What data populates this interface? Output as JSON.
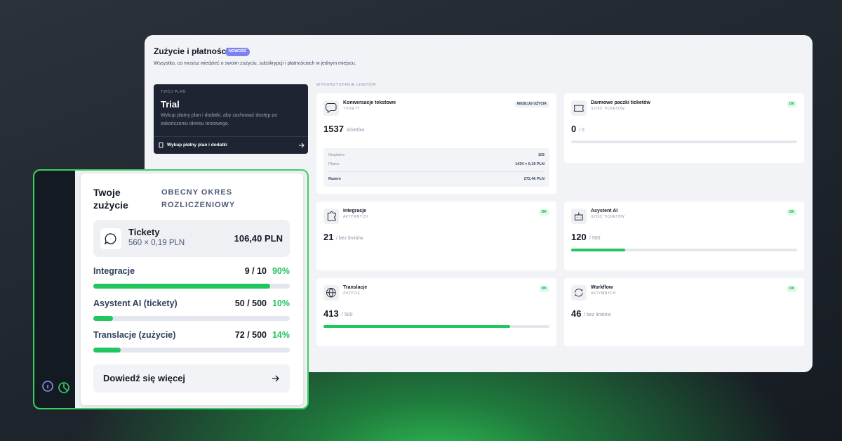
{
  "dashboard": {
    "title": "Zużycie i płatności",
    "badge": "NOWOŚĆ",
    "subtitle": "Wszystko, co musisz wiedzieć o swoim zużyciu, subskrypcji i płatnościach w jednym miejscu.",
    "plan": {
      "eyebrow": "TWÓJ PLAN",
      "name": "Trial",
      "description": "Wykup płatny plan i dodatki, aby zachować dostęp po zakończeniu okresu testowego.",
      "cta": "Wykup płatny plan i dodatki"
    },
    "limits_heading": "WYKORZYSTANIE LIMITÓW",
    "cards": [
      {
        "title": "Konwersacje tekstowe",
        "subtitle": "TICKETY",
        "badge": "WEDŁUG UŻYCIA",
        "value": "1537",
        "unit": "ticketów",
        "breakdown": [
          [
            "Niepłatne",
            "103"
          ],
          [
            "Płatne",
            "1434 × 0,19 PLN"
          ],
          [
            "Razem",
            "272,46 PLN"
          ]
        ]
      },
      {
        "title": "Darmowe paczki ticketów",
        "subtitle": "ILOŚĆ TICKETÓW",
        "badge": "OK",
        "value": 0,
        "limit": {
          "value": 0,
          "label": "/ 0"
        }
      },
      {
        "title": "Integracje",
        "subtitle": "AKTYWNYCH",
        "badge": "OK",
        "value": 21,
        "note": "/ bez limitów"
      },
      {
        "title": "Asystent AI",
        "subtitle": "ILOŚĆ TICKETÓW",
        "badge": "OK",
        "value": 120,
        "limit": {
          "value": 500,
          "label": "/ 500"
        }
      },
      {
        "title": "Translacje",
        "subtitle": "ZUŻYCIE",
        "badge": "OK",
        "value": 413,
        "limit": {
          "value": 500,
          "label": "/ 500"
        }
      },
      {
        "title": "Workflow",
        "subtitle": "AKTYWNYCH",
        "badge": "OK",
        "value": 46,
        "note": "/ bez limitów"
      }
    ]
  },
  "usage_panel": {
    "title": "Twoje zużycie",
    "period": "OBECNY OKRES ROZLICZENIOWY",
    "tickets": {
      "label": "Tickety",
      "detail": "560 × 0,19 PLN",
      "amount": "106,40 PLN"
    },
    "rows": [
      {
        "label": "Integracje",
        "count": "9 / 10",
        "percent": {
          "value": 90,
          "label": "90%"
        }
      },
      {
        "label": "Asystent AI (tickety)",
        "count": "50 / 500",
        "percent": {
          "value": 10,
          "label": "10%"
        }
      },
      {
        "label": "Translacje (zużycie)",
        "count": "72 / 500",
        "percent": {
          "value": 14,
          "label": "14%"
        }
      }
    ],
    "cta": "Dowiedź się więcej"
  }
}
